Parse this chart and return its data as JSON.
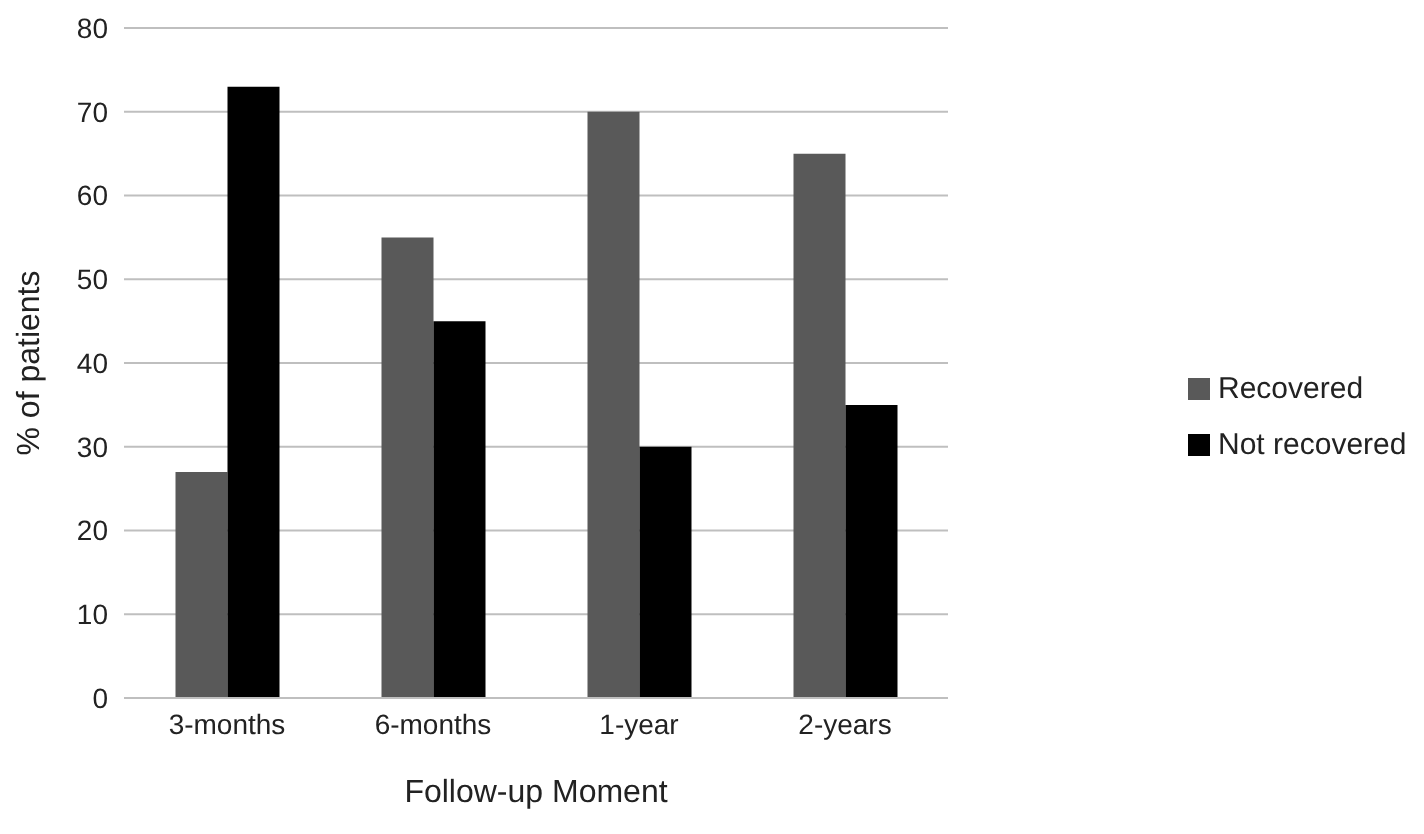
{
  "chart_data": {
    "type": "bar",
    "xlabel": "Follow-up Moment",
    "ylabel": "% of patients",
    "categories": [
      "3-months",
      "6-months",
      "1-year",
      "2-years"
    ],
    "series": [
      {
        "name": "Recovered",
        "color": "#595959",
        "values": [
          27,
          55,
          70,
          65
        ]
      },
      {
        "name": "Not recovered",
        "color": "#000000",
        "values": [
          73,
          45,
          30,
          35
        ]
      }
    ],
    "ylim": [
      0,
      80
    ],
    "yticks": [
      0,
      10,
      20,
      30,
      40,
      50,
      60,
      70,
      80
    ],
    "grid": "y",
    "legend": "right"
  }
}
